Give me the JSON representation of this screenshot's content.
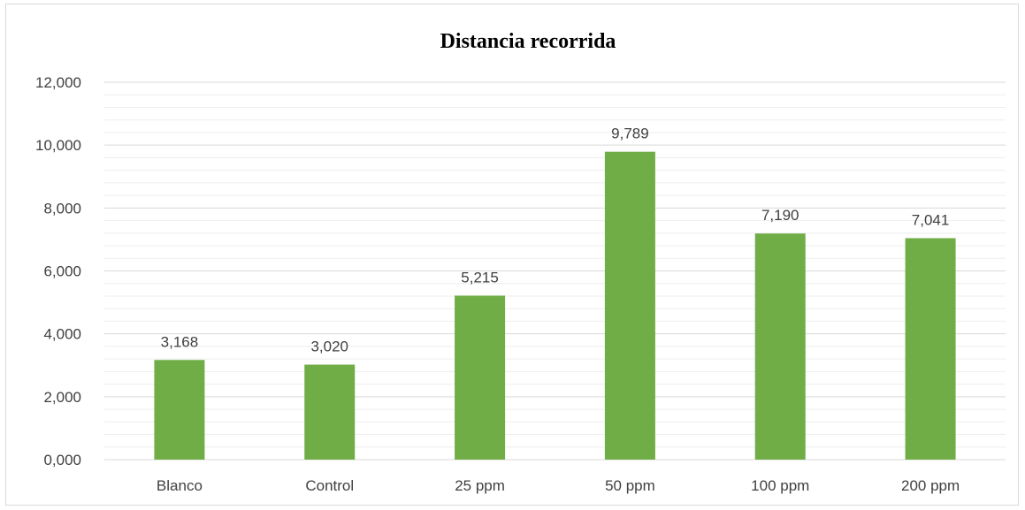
{
  "chart_data": {
    "type": "bar",
    "title": "Distancia recorrida",
    "xlabel": "",
    "ylabel": "",
    "categories": [
      "Blanco",
      "Control",
      "25 ppm",
      "50 ppm",
      "100 ppm",
      "200 ppm"
    ],
    "values": [
      3.168,
      3.02,
      5.215,
      9.789,
      7.19,
      7.041
    ],
    "value_labels": [
      "3,168",
      "3,020",
      "5,215",
      "9,789",
      "7,190",
      "7,041"
    ],
    "ylim": [
      0,
      12
    ],
    "yticks": [
      0,
      2,
      4,
      6,
      8,
      10,
      12
    ],
    "ytick_labels": [
      "0,000",
      "2,000",
      "4,000",
      "6,000",
      "8,000",
      "10,000",
      "12,000"
    ],
    "grid": true,
    "minor_grid": true,
    "legend": "none",
    "colors": {
      "bar": "#70ad47",
      "major_grid": "#d9d9d9",
      "minor_grid": "#ededed",
      "text": "#404040"
    }
  }
}
